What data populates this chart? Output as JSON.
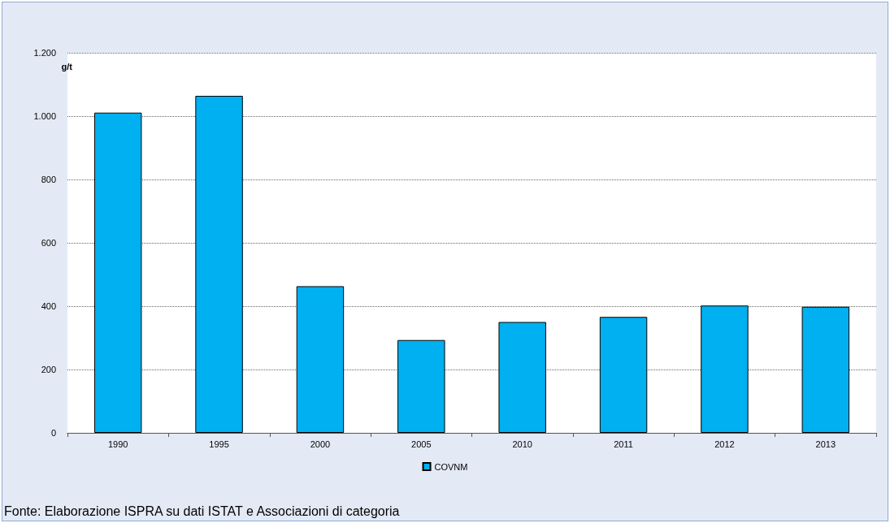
{
  "chart_data": {
    "type": "bar",
    "ylabel": "g/t",
    "categories": [
      "1990",
      "1995",
      "2000",
      "2005",
      "2010",
      "2011",
      "2012",
      "2013"
    ],
    "series": [
      {
        "name": "COVNM",
        "color": "#00b0f0",
        "values": [
          1011,
          1064,
          463,
          293,
          350,
          366,
          402,
          398
        ]
      }
    ],
    "ylim": [
      0,
      1200
    ],
    "yticks": [
      0,
      200,
      400,
      600,
      800,
      {
        "value": 1000,
        "label": "1.000"
      },
      {
        "value": 1200,
        "label": "1.200"
      }
    ],
    "grid": "y",
    "legend": "bottom",
    "annotations": [
      "Fonte: Elaborazione ISPRA su dati ISTAT e Associazioni di categoria"
    ]
  }
}
